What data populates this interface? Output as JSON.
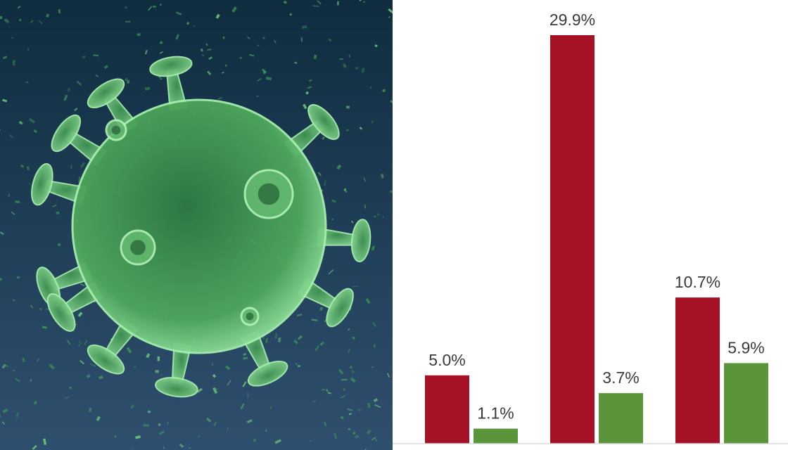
{
  "photo": {
    "subject": "virus-illustration",
    "colors": {
      "background_top": "#0f2d3f",
      "background_bottom": "#2f4f6e",
      "virus_body": "#5db86b",
      "virus_outline": "#9fe7a3"
    }
  },
  "chart_data": {
    "type": "bar",
    "categories": [
      "",
      "",
      ""
    ],
    "series": [
      {
        "values": [
          5.0,
          29.9,
          10.7
        ],
        "color": "#a51226"
      },
      {
        "values": [
          1.1,
          3.7,
          5.9
        ],
        "color": "#5a953a"
      }
    ],
    "data_labels": [
      [
        "5.0%",
        "29.9%",
        "10.7%"
      ],
      [
        "1.1%",
        "3.7%",
        "5.9%"
      ]
    ],
    "title": "",
    "xlabel": "",
    "ylabel": "",
    "ylim": [
      0,
      32
    ],
    "grid": false,
    "legend": "none"
  }
}
